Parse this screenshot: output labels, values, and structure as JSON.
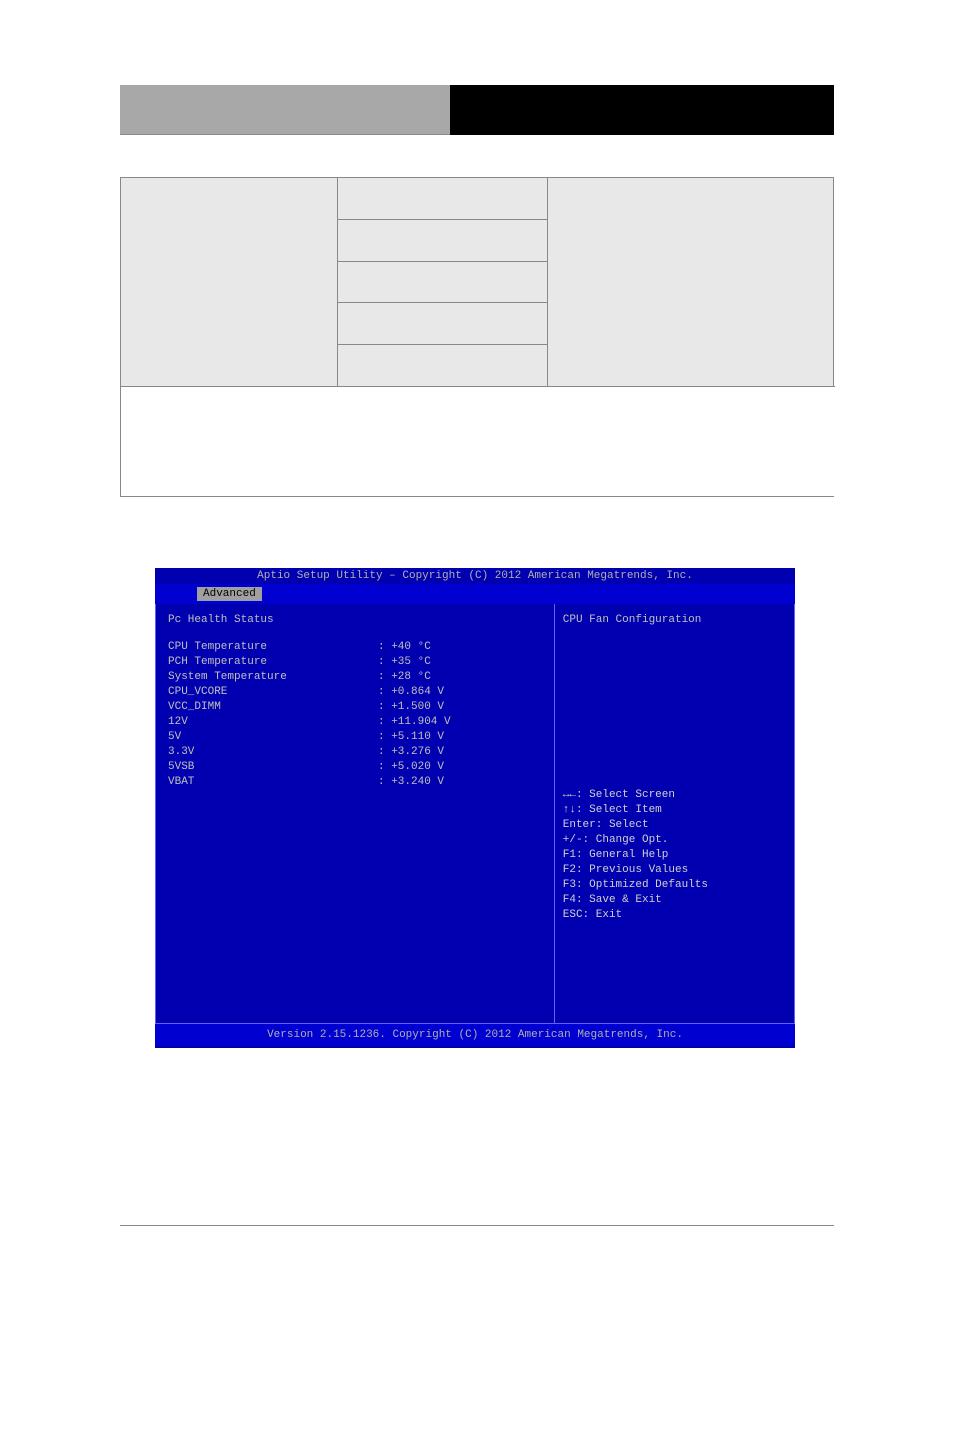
{
  "bios": {
    "top_bar": "Aptio Setup Utility – Copyright (C) 2012 American Megatrends, Inc.",
    "tab": "Advanced",
    "heading": "Pc Health Status",
    "fields": [
      {
        "label": "CPU Temperature",
        "value": ": +40 °C"
      },
      {
        "label": "PCH Temperature",
        "value": ": +35 °C"
      },
      {
        "label": "System Temperature",
        "value": ": +28 °C"
      },
      {
        "label": "CPU_VCORE",
        "value": ": +0.864 V"
      },
      {
        "label": "VCC_DIMM",
        "value": ": +1.500 V"
      },
      {
        "label": "12V",
        "value": ": +11.904 V"
      },
      {
        "label": "5V",
        "value": ": +5.110 V"
      },
      {
        "label": "3.3V",
        "value": ": +3.276 V"
      },
      {
        "label": "5VSB",
        "value": ": +5.020 V"
      },
      {
        "label": "VBAT",
        "value": ": +3.240 V"
      }
    ],
    "help_title": "CPU Fan Configuration",
    "nav_help": [
      "↔←: Select Screen",
      "↑↓: Select Item",
      "Enter: Select",
      "+/-: Change Opt.",
      "F1: General Help",
      "F2: Previous Values",
      "F3: Optimized Defaults",
      "F4: Save & Exit",
      "ESC: Exit"
    ],
    "footer": "Version 2.15.1236. Copyright (C) 2012 American Megatrends, Inc."
  },
  "colors": {
    "bios_bg": "#0000b0",
    "bios_bar": "#0000d0",
    "bios_text": "#c0c0c0",
    "tab_bg": "#a0a0a0",
    "header_gray": "#a8a8a8",
    "table_gray": "#e8e8e8"
  }
}
